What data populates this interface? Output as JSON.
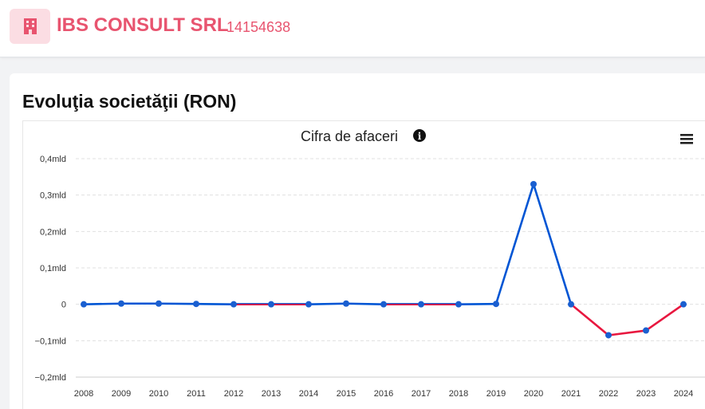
{
  "header": {
    "company_name": "IBS CONSULT SRL",
    "company_code": "14154638",
    "building_icon": "building-icon"
  },
  "section": {
    "title": "Evoluţia societăţii (RON)"
  },
  "chart_menu_icon": "hamburger-menu-icon",
  "info_icon": "info-icon",
  "colors": {
    "brand": "#e8546f",
    "positive_line": "#0055d4",
    "negative_line": "#e8173f"
  },
  "chart_data": {
    "type": "line",
    "title": "Cifra de afaceri",
    "xlabel": "",
    "ylabel": "",
    "categories": [
      "2008",
      "2009",
      "2010",
      "2011",
      "2012",
      "2013",
      "2014",
      "2015",
      "2016",
      "2017",
      "2018",
      "2019",
      "2020",
      "2021",
      "2022",
      "2023",
      "2024"
    ],
    "series": [
      {
        "values": [
          0,
          0.002,
          0.002,
          0.001,
          0,
          0,
          0,
          0.002,
          0,
          0,
          0,
          0.001,
          0.33,
          0,
          -0.085,
          -0.072,
          0
        ]
      }
    ],
    "ylim": [
      -0.2,
      0.4
    ],
    "yticks": [
      0.4,
      0.3,
      0.2,
      0.1,
      0,
      -0.1,
      -0.2
    ],
    "ytick_labels": [
      "0,4mld",
      "0,3mld",
      "0,2mld",
      "0,1mld",
      "0",
      "−0,1mld",
      "−0,2mld"
    ],
    "grid": true,
    "legend": "none"
  }
}
